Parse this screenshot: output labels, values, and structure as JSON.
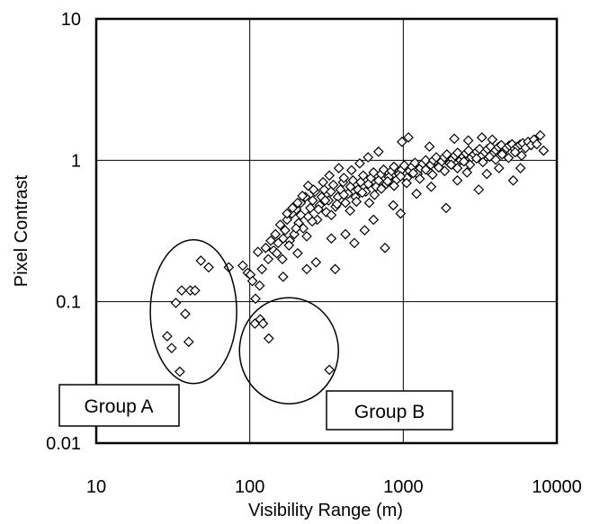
{
  "chart_data": {
    "type": "scatter",
    "title": "",
    "xlabel": "Visibility Range (m)",
    "ylabel": "Pixel Contrast",
    "xscale": "log",
    "yscale": "log",
    "xlim": [
      10,
      10000
    ],
    "ylim": [
      0.01,
      10
    ],
    "grid": true,
    "legend": "none",
    "marker": "diamond",
    "marker_color": "#000000",
    "x_ticks": [
      "10",
      "100",
      "1000",
      "10000"
    ],
    "y_ticks": [
      "0.01",
      "0.1",
      "1",
      "10"
    ],
    "groups": [
      {
        "label": "Group A",
        "ellipse_center": [
          43,
          0.085
        ]
      },
      {
        "label": "Group B",
        "ellipse_center": [
          180,
          0.045
        ]
      }
    ],
    "points": [
      [
        29,
        0.057
      ],
      [
        31,
        0.047
      ],
      [
        33,
        0.098
      ],
      [
        35,
        0.032
      ],
      [
        36,
        0.12
      ],
      [
        38,
        0.082
      ],
      [
        40,
        0.052
      ],
      [
        41,
        0.12
      ],
      [
        44,
        0.12
      ],
      [
        48,
        0.195
      ],
      [
        54,
        0.175
      ],
      [
        73,
        0.175
      ],
      [
        90,
        0.18
      ],
      [
        97,
        0.16
      ],
      [
        101,
        0.155
      ],
      [
        104,
        0.14
      ],
      [
        109,
        0.105
      ],
      [
        113,
        0.225
      ],
      [
        108,
        0.07
      ],
      [
        117,
        0.075
      ],
      [
        122,
        0.07
      ],
      [
        133,
        0.055
      ],
      [
        330,
        0.033
      ],
      [
        116,
        0.13
      ],
      [
        120,
        0.17
      ],
      [
        127,
        0.24
      ],
      [
        132,
        0.2
      ],
      [
        137,
        0.27
      ],
      [
        143,
        0.23
      ],
      [
        147,
        0.3
      ],
      [
        153,
        0.26
      ],
      [
        158,
        0.35
      ],
      [
        163,
        0.2
      ],
      [
        170,
        0.32
      ],
      [
        175,
        0.38
      ],
      [
        182,
        0.27
      ],
      [
        188,
        0.42
      ],
      [
        195,
        0.3
      ],
      [
        201,
        0.45
      ],
      [
        208,
        0.36
      ],
      [
        215,
        0.5
      ],
      [
        223,
        0.33
      ],
      [
        230,
        0.55
      ],
      [
        240,
        0.4
      ],
      [
        248,
        0.46
      ],
      [
        257,
        0.52
      ],
      [
        266,
        0.6
      ],
      [
        275,
        0.38
      ],
      [
        285,
        0.48
      ],
      [
        294,
        0.55
      ],
      [
        305,
        0.62
      ],
      [
        315,
        0.43
      ],
      [
        326,
        0.52
      ],
      [
        338,
        0.6
      ],
      [
        350,
        0.67
      ],
      [
        362,
        0.47
      ],
      [
        375,
        0.55
      ],
      [
        390,
        0.62
      ],
      [
        405,
        0.7
      ],
      [
        420,
        0.5
      ],
      [
        436,
        0.58
      ],
      [
        452,
        0.65
      ],
      [
        470,
        0.72
      ],
      [
        488,
        0.55
      ],
      [
        507,
        0.62
      ],
      [
        527,
        0.7
      ],
      [
        548,
        0.78
      ],
      [
        570,
        0.6
      ],
      [
        592,
        0.68
      ],
      [
        615,
        0.75
      ],
      [
        640,
        0.82
      ],
      [
        665,
        0.65
      ],
      [
        690,
        0.72
      ],
      [
        717,
        0.8
      ],
      [
        745,
        0.86
      ],
      [
        775,
        0.68
      ],
      [
        805,
        0.76
      ],
      [
        838,
        0.84
      ],
      [
        870,
        0.9
      ],
      [
        905,
        0.73
      ],
      [
        940,
        0.8
      ],
      [
        978,
        0.86
      ],
      [
        1015,
        0.92
      ],
      [
        1058,
        0.75
      ],
      [
        1100,
        0.84
      ],
      [
        1140,
        0.9
      ],
      [
        1190,
        0.96
      ],
      [
        1240,
        0.8
      ],
      [
        1290,
        0.88
      ],
      [
        1340,
        0.95
      ],
      [
        1400,
        1.0
      ],
      [
        1450,
        0.85
      ],
      [
        1510,
        0.93
      ],
      [
        1570,
        1.0
      ],
      [
        1640,
        1.05
      ],
      [
        1700,
        0.9
      ],
      [
        1780,
        0.98
      ],
      [
        1850,
        1.05
      ],
      [
        1920,
        1.1
      ],
      [
        2000,
        0.95
      ],
      [
        2090,
        1.02
      ],
      [
        2170,
        1.08
      ],
      [
        2260,
        1.13
      ],
      [
        2360,
        1.0
      ],
      [
        2460,
        1.06
      ],
      [
        2560,
        1.12
      ],
      [
        2660,
        1.17
      ],
      [
        2780,
        1.05
      ],
      [
        2890,
        1.1
      ],
      [
        3010,
        1.15
      ],
      [
        3140,
        1.2
      ],
      [
        3260,
        1.08
      ],
      [
        3400,
        1.14
      ],
      [
        3540,
        1.2
      ],
      [
        3700,
        1.25
      ],
      [
        3850,
        1.12
      ],
      [
        4000,
        1.18
      ],
      [
        4170,
        1.24
      ],
      [
        4350,
        1.28
      ],
      [
        4520,
        1.16
      ],
      [
        4710,
        1.22
      ],
      [
        4900,
        1.27
      ],
      [
        5110,
        1.3
      ],
      [
        5320,
        1.2
      ],
      [
        5540,
        1.25
      ],
      [
        5770,
        1.29
      ],
      [
        6000,
        1.32
      ],
      [
        6250,
        1.22
      ],
      [
        6500,
        1.35
      ],
      [
        6800,
        1.28
      ],
      [
        7100,
        1.4
      ],
      [
        7400,
        1.3
      ],
      [
        7800,
        1.5
      ],
      [
        8200,
        1.17
      ],
      [
        150,
        0.22
      ],
      [
        165,
        0.28
      ],
      [
        180,
        0.25
      ],
      [
        200,
        0.33
      ],
      [
        215,
        0.41
      ],
      [
        235,
        0.29
      ],
      [
        255,
        0.37
      ],
      [
        280,
        0.45
      ],
      [
        310,
        0.52
      ],
      [
        340,
        0.41
      ],
      [
        370,
        0.49
      ],
      [
        410,
        0.57
      ],
      [
        450,
        0.44
      ],
      [
        495,
        0.51
      ],
      [
        540,
        0.59
      ],
      [
        600,
        0.5
      ],
      [
        650,
        0.57
      ],
      [
        720,
        0.63
      ],
      [
        790,
        0.71
      ],
      [
        870,
        0.66
      ],
      [
        960,
        0.77
      ],
      [
        1050,
        0.69
      ],
      [
        1160,
        0.81
      ],
      [
        1280,
        0.74
      ],
      [
        1400,
        0.86
      ],
      [
        1550,
        0.79
      ],
      [
        1700,
        0.89
      ],
      [
        1860,
        0.84
      ],
      [
        2050,
        0.93
      ],
      [
        2250,
        0.88
      ],
      [
        2480,
        0.98
      ],
      [
        2720,
        0.93
      ],
      [
        3000,
        1.03
      ],
      [
        3300,
        0.97
      ],
      [
        3650,
        1.06
      ],
      [
        4000,
        1.01
      ],
      [
        4400,
        1.1
      ],
      [
        4850,
        1.04
      ],
      [
        5350,
        1.14
      ],
      [
        5900,
        1.08
      ],
      [
        165,
        0.15
      ],
      [
        205,
        0.22
      ],
      [
        235,
        0.17
      ],
      [
        270,
        0.19
      ],
      [
        340,
        0.28
      ],
      [
        360,
        0.17
      ],
      [
        420,
        0.3
      ],
      [
        480,
        0.26
      ],
      [
        560,
        0.32
      ],
      [
        640,
        0.38
      ],
      [
        760,
        0.24
      ],
      [
        860,
        0.48
      ],
      [
        960,
        0.42
      ],
      [
        1220,
        0.58
      ],
      [
        1520,
        0.65
      ],
      [
        1900,
        0.46
      ],
      [
        2250,
        0.72
      ],
      [
        2600,
        0.82
      ],
      [
        3100,
        0.62
      ],
      [
        3500,
        0.8
      ],
      [
        4200,
        0.88
      ],
      [
        5200,
        0.72
      ],
      [
        5800,
        0.88
      ],
      [
        980,
        1.35
      ],
      [
        1080,
        1.45
      ],
      [
        1480,
        1.25
      ],
      [
        2150,
        1.42
      ],
      [
        2650,
        1.38
      ],
      [
        3250,
        1.45
      ],
      [
        3800,
        1.4
      ],
      [
        690,
        1.15
      ],
      [
        590,
        1.05
      ],
      [
        520,
        0.95
      ],
      [
        460,
        0.85
      ],
      [
        410,
        0.75
      ],
      [
        380,
        0.88
      ],
      [
        330,
        0.78
      ],
      [
        300,
        0.7
      ],
      [
        260,
        0.62
      ],
      [
        240,
        0.66
      ],
      [
        220,
        0.56
      ],
      [
        205,
        0.5
      ],
      [
        190,
        0.46
      ],
      [
        175,
        0.42
      ]
    ]
  }
}
